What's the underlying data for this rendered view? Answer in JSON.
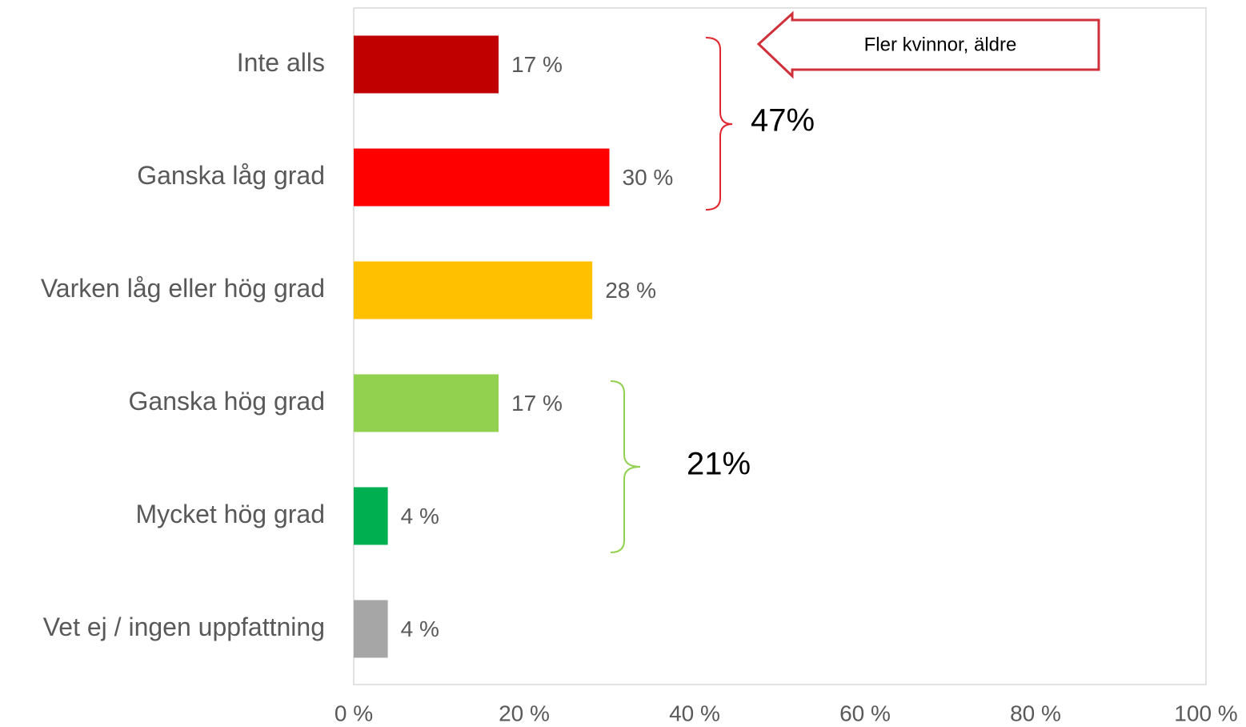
{
  "chart_data": {
    "type": "bar",
    "orientation": "horizontal",
    "categories": [
      "Inte alls",
      "Ganska låg grad",
      "Varken låg eller hög grad",
      "Ganska hög grad",
      "Mycket hög grad",
      "Vet ej / ingen uppfattning"
    ],
    "values": [
      17,
      30,
      28,
      17,
      4,
      4
    ],
    "value_labels": [
      "17 %",
      "30 %",
      "28 %",
      "17 %",
      "4 %",
      "4 %"
    ],
    "colors": [
      "#c00000",
      "#ff0000",
      "#ffc000",
      "#92d050",
      "#00b050",
      "#a6a6a6"
    ],
    "xlim": [
      0,
      100
    ],
    "xticks": [
      {
        "value": 0,
        "label": "0 %"
      },
      {
        "value": 20,
        "label": "20 %"
      },
      {
        "value": 40,
        "label": "40 %"
      },
      {
        "value": 60,
        "label": "60 %"
      },
      {
        "value": 80,
        "label": "80 %"
      },
      {
        "value": 100,
        "label": "100 %"
      }
    ],
    "grid": false,
    "annotations": [
      "47%",
      "21%",
      "Fler kvinnor, äldre"
    ]
  }
}
